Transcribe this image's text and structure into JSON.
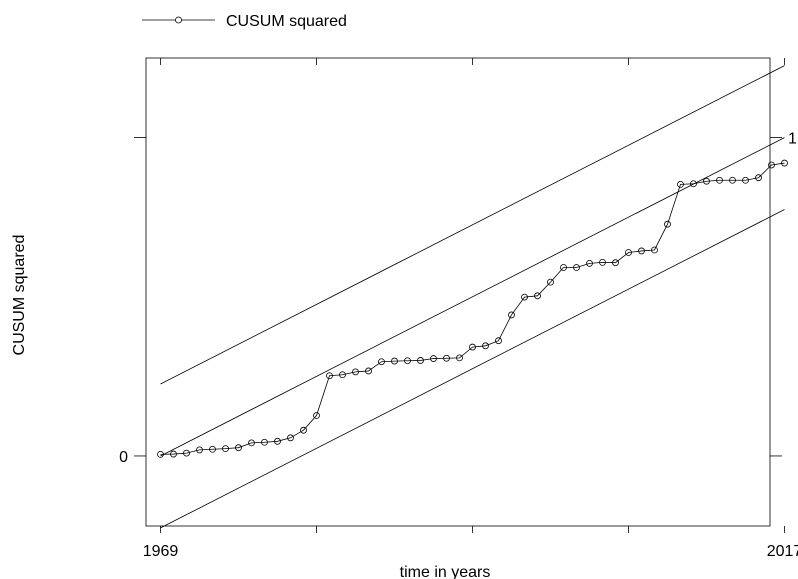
{
  "chart_data": {
    "type": "line",
    "title": "",
    "xlabel": "time in years",
    "ylabel": "CUSUM squared",
    "xlim": [
      1969,
      2017
    ],
    "ylim": [
      -0.22,
      1.25
    ],
    "x_ticks": [
      1969,
      1981,
      1993,
      2005,
      2017
    ],
    "x_tick_labels": [
      {
        "x": 1969,
        "label": "1969"
      },
      {
        "x": 2017,
        "label": "2017"
      }
    ],
    "y_ticks": [
      0,
      1
    ],
    "y_tick_labels": [
      {
        "y": 0,
        "label": "0"
      },
      {
        "y": 1,
        "label": "1"
      }
    ],
    "legend": {
      "placement": "top-left",
      "entries": [
        "CUSUM squared"
      ]
    },
    "grid": false,
    "series": [
      {
        "name": "CUSUM squared",
        "marker": "circle",
        "x": [
          1969,
          1970,
          1971,
          1972,
          1973,
          1974,
          1975,
          1976,
          1977,
          1978,
          1979,
          1980,
          1981,
          1982,
          1983,
          1984,
          1985,
          1986,
          1987,
          1988,
          1989,
          1990,
          1991,
          1992,
          1993,
          1994,
          1995,
          1996,
          1997,
          1998,
          1999,
          2000,
          2001,
          2002,
          2003,
          2004,
          2005,
          2006,
          2007,
          2008,
          2009,
          2010,
          2011,
          2012,
          2013,
          2014,
          2015,
          2016,
          2017
        ],
        "y": [
          0.005,
          0.006,
          0.009,
          0.019,
          0.021,
          0.023,
          0.026,
          0.041,
          0.043,
          0.046,
          0.057,
          0.081,
          0.127,
          0.252,
          0.255,
          0.264,
          0.267,
          0.296,
          0.298,
          0.299,
          0.3,
          0.306,
          0.307,
          0.308,
          0.342,
          0.346,
          0.362,
          0.443,
          0.499,
          0.503,
          0.546,
          0.592,
          0.592,
          0.605,
          0.608,
          0.607,
          0.639,
          0.644,
          0.647,
          0.728,
          0.853,
          0.855,
          0.863,
          0.866,
          0.866,
          0.866,
          0.874,
          0.914,
          0.92
        ]
      },
      {
        "name": "",
        "style": "line",
        "x": [
          1969,
          2017
        ],
        "y": [
          0.0,
          1.0
        ]
      },
      {
        "name": "",
        "style": "line",
        "x": [
          1969,
          2017
        ],
        "y": [
          0.226,
          1.226
        ]
      },
      {
        "name": "",
        "style": "line",
        "x": [
          1969,
          2017
        ],
        "y": [
          -0.226,
          0.774
        ]
      }
    ]
  }
}
